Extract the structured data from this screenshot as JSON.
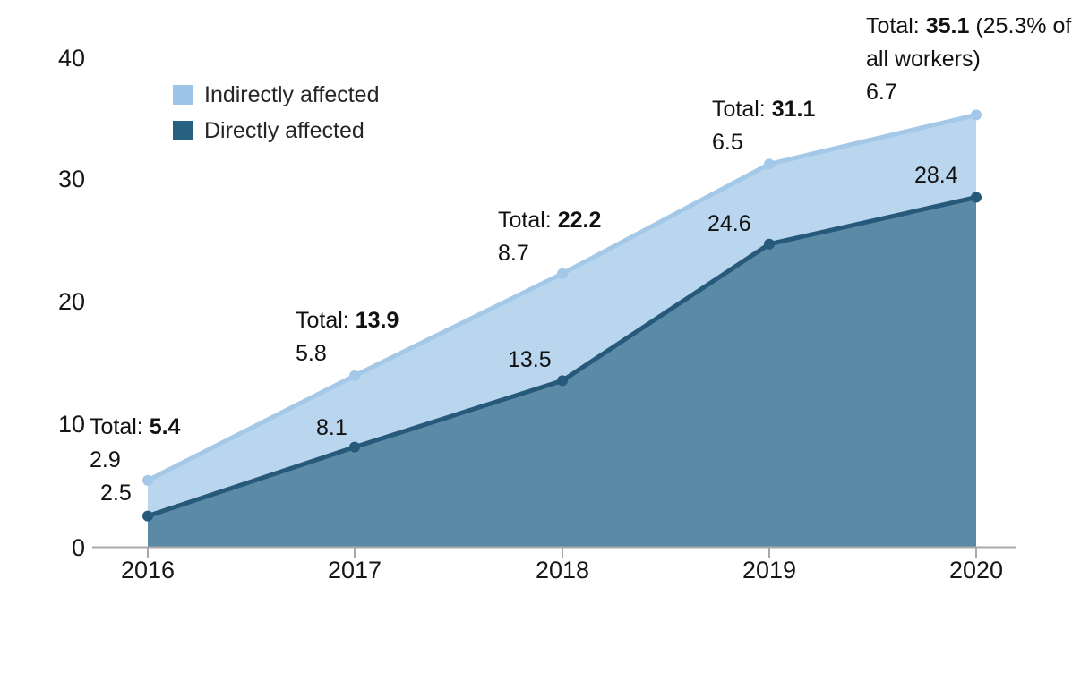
{
  "chart_data": {
    "type": "area",
    "stacked": true,
    "title": "",
    "categories": [
      "2016",
      "2017",
      "2018",
      "2019",
      "2020"
    ],
    "series": [
      {
        "name": "Directly affected",
        "values": [
          2.5,
          8.1,
          13.5,
          24.6,
          28.4
        ],
        "color_fill": "#5a8aa5",
        "color_line": "#27597b",
        "color_legend": "#266181"
      },
      {
        "name": "Indirectly affected",
        "values": [
          2.9,
          5.8,
          8.7,
          6.5,
          6.7
        ],
        "color_fill": "#bad6ee",
        "color_line": "#a4c8e8",
        "color_legend": "#9dc3e6"
      }
    ],
    "totals": [
      5.4,
      13.9,
      22.2,
      31.1,
      35.1
    ],
    "xlabel": "",
    "ylabel": "",
    "ylim": [
      0,
      40
    ],
    "ytick_labels": [
      "40",
      "30",
      "20",
      "10",
      "0"
    ],
    "grid": false,
    "legend_position": "top-left",
    "axis_color": "#a9a9a9",
    "annotations": [
      {
        "total_prefix": "Total: ",
        "total_value": "5.4",
        "total_suffix": "",
        "indirect": "2.9",
        "direct": "2.5"
      },
      {
        "total_prefix": "Total: ",
        "total_value": "13.9",
        "total_suffix": "",
        "indirect": "5.8",
        "direct": "8.1"
      },
      {
        "total_prefix": "Total: ",
        "total_value": "22.2",
        "total_suffix": "",
        "indirect": "8.7",
        "direct": "13.5"
      },
      {
        "total_prefix": "Total: ",
        "total_value": "31.1",
        "total_suffix": "",
        "indirect": "6.5",
        "direct": "24.6"
      },
      {
        "total_prefix": "Total: ",
        "total_value": "35.1",
        "total_suffix": " (25.3% of all workers)",
        "indirect": "6.7",
        "direct": "28.4"
      }
    ]
  }
}
